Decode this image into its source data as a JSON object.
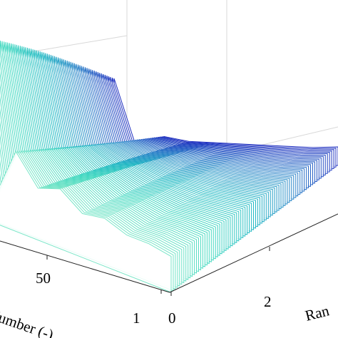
{
  "chart_data": {
    "type": "area",
    "title": "",
    "xlabel": "Number (-)",
    "ylabel": "Ran",
    "x_ticks": [
      "50",
      "1"
    ],
    "y_ticks": [
      "0",
      "2"
    ],
    "series_count": 80,
    "series": [
      {
        "values": [
          9.0,
          1.2,
          4.0,
          2.6,
          3.0,
          2.2,
          2.4,
          2.0,
          2.0,
          1.8
        ]
      },
      {
        "values": [
          9.6,
          1.4,
          3.8,
          2.8,
          3.0,
          2.4,
          2.4,
          2.1,
          2.0,
          1.9
        ]
      },
      {
        "values": [
          10.0,
          1.6,
          3.6,
          3.0,
          2.8,
          2.6,
          2.4,
          2.2,
          2.0,
          2.0
        ]
      }
    ],
    "colormap": [
      "#1f2fc0",
      "#2a80c8",
      "#22b8c4",
      "#40d8c0",
      "#7ae6c8"
    ],
    "grid": true
  }
}
